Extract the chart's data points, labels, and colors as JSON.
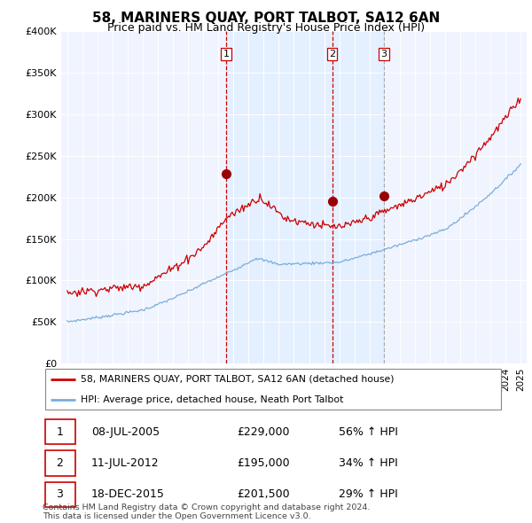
{
  "title": "58, MARINERS QUAY, PORT TALBOT, SA12 6AN",
  "subtitle": "Price paid vs. HM Land Registry's House Price Index (HPI)",
  "ylim": [
    0,
    400000
  ],
  "yticks": [
    0,
    50000,
    100000,
    150000,
    200000,
    250000,
    300000,
    350000,
    400000
  ],
  "ytick_labels": [
    "£0",
    "£50K",
    "£100K",
    "£150K",
    "£200K",
    "£250K",
    "£300K",
    "£350K",
    "£400K"
  ],
  "sale_color": "#cc0000",
  "hpi_color": "#7aadda",
  "vline3_color": "#aaaaaa",
  "grid_color": "#cccccc",
  "shade_color": "#ddeeff",
  "sales": [
    {
      "label": "1",
      "date_num": 2005.52,
      "price": 229000,
      "vline_style": "dashed",
      "vline_color": "#cc0000",
      "date_str": "08-JUL-2005",
      "price_str": "£229,000",
      "pct": "56%"
    },
    {
      "label": "2",
      "date_num": 2012.53,
      "price": 195000,
      "vline_style": "dashed",
      "vline_color": "#cc0000",
      "date_str": "11-JUL-2012",
      "price_str": "£195,000",
      "pct": "34%"
    },
    {
      "label": "3",
      "date_num": 2015.96,
      "price": 201500,
      "vline_style": "dashed",
      "vline_color": "#aaaaaa",
      "date_str": "18-DEC-2015",
      "price_str": "£201,500",
      "pct": "29%"
    }
  ],
  "legend_line1": "58, MARINERS QUAY, PORT TALBOT, SA12 6AN (detached house)",
  "legend_line2": "HPI: Average price, detached house, Neath Port Talbot",
  "footnote": "Contains HM Land Registry data © Crown copyright and database right 2024.\nThis data is licensed under the Open Government Licence v3.0.",
  "background_color": "#ffffff",
  "plot_bg_color": "#f0f4ff"
}
